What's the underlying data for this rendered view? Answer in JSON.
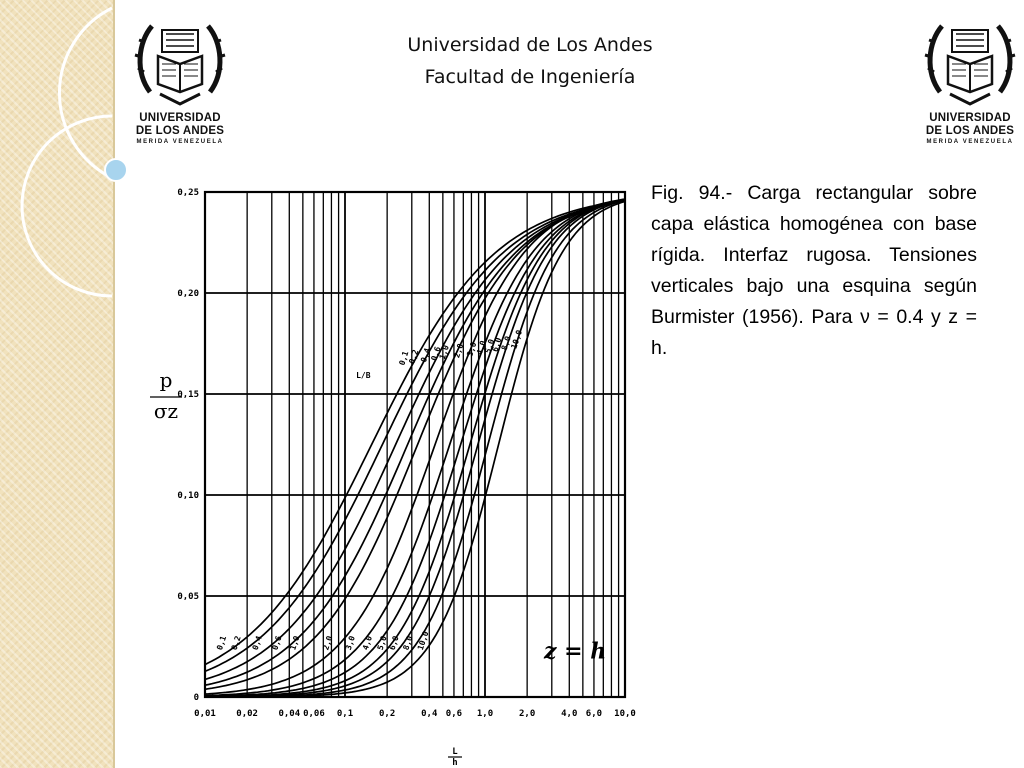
{
  "header": {
    "university": "Universidad de Los Andes",
    "faculty": "Facultad de Ingeniería"
  },
  "logos": {
    "line1": "UNIVERSIDAD",
    "line2": "DE LOS ANDES",
    "line3": "MERIDA VENEZUELA"
  },
  "caption": "Fig. 94.- Carga rectangular sobre capa elástica homogénea con base rígida. Interfaz rugosa. Tensiones verticales bajo una esquina según Burmister (1956). Para ν = 0.4 y z = h.",
  "colors": {
    "band": "#f1e2bd",
    "deco_ring": "#ffffff",
    "deco_dot": "#a8d4ee",
    "ink": "#000000"
  },
  "chart_data": {
    "type": "line",
    "x_scale": "log",
    "xlim": [
      0.01,
      10.0
    ],
    "ylim": [
      0,
      0.25
    ],
    "x_ticks": [
      "0,01",
      "0,02",
      "0,04",
      "0,06",
      "0,1",
      "0,2",
      "0,4",
      "0,6",
      "1,0",
      "2,0",
      "4,0",
      "6,0",
      "10,0"
    ],
    "y_ticks": [
      "0",
      "0,05",
      "0,10",
      "0,15",
      "0,20",
      "0,25"
    ],
    "ylabel": "σz / p",
    "xlabel": "L / h",
    "annotation": "z = h",
    "annotation_lb": "L/B",
    "grid": true,
    "series": [
      {
        "name": "0,1",
        "m": 0.155,
        "w": 1.95
      },
      {
        "name": "0,2",
        "m": 0.185,
        "w": 1.9
      },
      {
        "name": "0,4",
        "m": 0.23,
        "w": 1.8
      },
      {
        "name": "0,6",
        "m": 0.28,
        "w": 1.7
      },
      {
        "name": "1,0",
        "m": 0.33,
        "w": 1.6
      },
      {
        "name": "2,0",
        "m": 0.44,
        "w": 1.4
      },
      {
        "name": "3,0",
        "m": 0.56,
        "w": 1.3
      },
      {
        "name": "4,0",
        "m": 0.67,
        "w": 1.22
      },
      {
        "name": "5,0",
        "m": 0.78,
        "w": 1.15
      },
      {
        "name": "6,0",
        "m": 0.89,
        "w": 1.1
      },
      {
        "name": "8,0",
        "m": 1.05,
        "w": 1.05
      },
      {
        "name": "10,0",
        "m": 1.25,
        "w": 1.0
      }
    ]
  }
}
